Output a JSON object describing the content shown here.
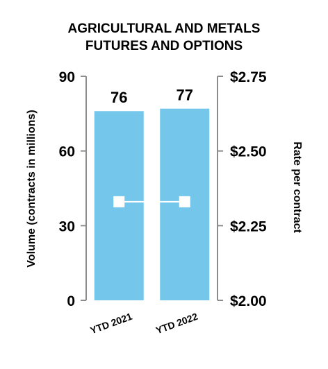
{
  "chart_data": {
    "type": "bar",
    "title_lines": [
      "AGRICULTURAL AND METALS",
      "FUTURES AND OPTIONS"
    ],
    "categories": [
      "YTD 2021",
      "YTD 2022"
    ],
    "series": [
      {
        "name": "",
        "type": "bar",
        "axis": "left",
        "values": [
          76,
          77
        ],
        "data_labels": [
          "76",
          "77"
        ],
        "color": "#74c7ea"
      },
      {
        "name": "",
        "type": "line",
        "axis": "right",
        "values": [
          2.33,
          2.33
        ],
        "color": "#ffffff"
      }
    ],
    "ylabel": "Volume (contracts in millions)",
    "ylabel_right": "Rate per contract",
    "ylim": [
      0,
      90
    ],
    "ylim_right": [
      2.0,
      2.75
    ],
    "yticks": [
      0,
      30,
      60,
      90
    ],
    "yticks_labels": [
      "0",
      "30",
      "60",
      "90"
    ],
    "yticks_right_labels": [
      "$2.00",
      "$2.25",
      "$2.50",
      "$2.75"
    ],
    "axis_color": "#8c8c8c"
  }
}
